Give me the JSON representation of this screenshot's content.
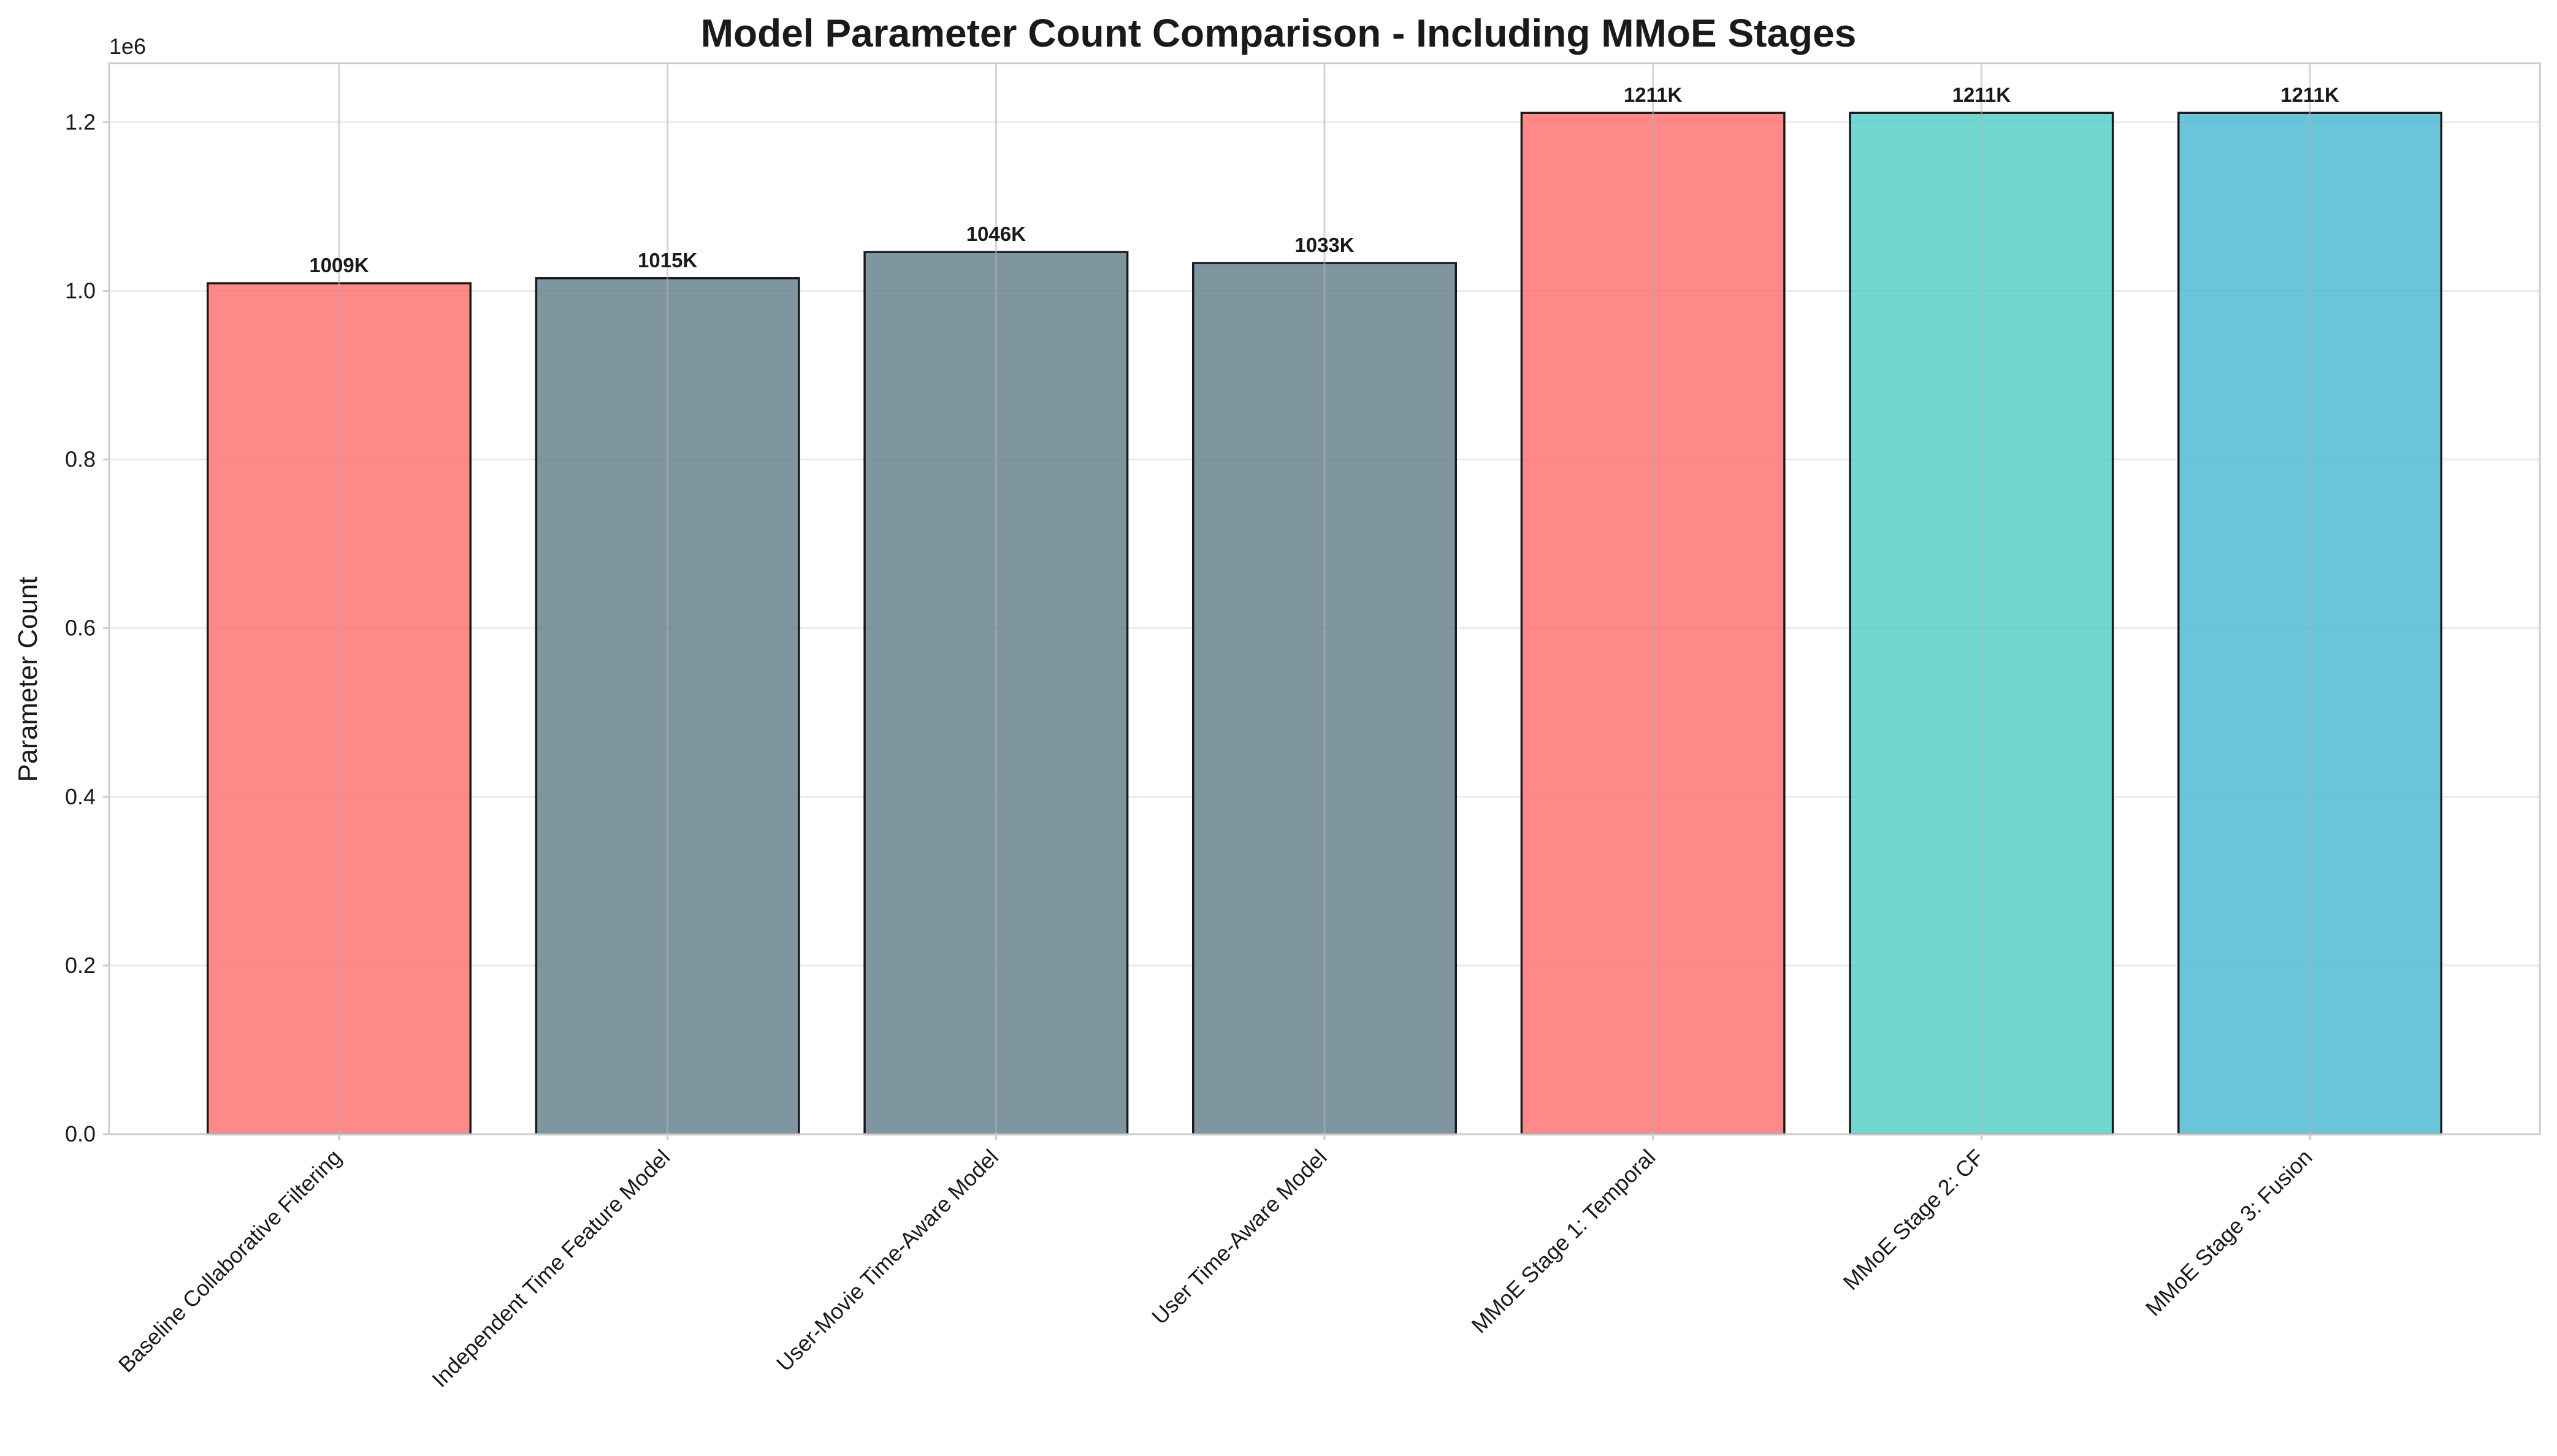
{
  "chart_data": {
    "type": "bar",
    "title": "Model Parameter Count Comparison - Including MMoE Stages",
    "xlabel": "",
    "ylabel": "Parameter Count",
    "y_offset_label": "1e6",
    "ylim": [
      0,
      1.27
    ],
    "y_ticks": [
      0.0,
      0.2,
      0.4,
      0.6,
      0.8,
      1.0,
      1.2
    ],
    "y_tick_labels": [
      "0.0",
      "0.2",
      "0.4",
      "0.6",
      "0.8",
      "1.0",
      "1.2"
    ],
    "grid": true,
    "categories": [
      "Baseline Collaborative Filtering",
      "Independent Time Feature Model",
      "User-Movie Time-Aware Model",
      "User Time-Aware Model",
      "MMoE Stage 1: Temporal",
      "MMoE Stage 2: CF",
      "MMoE Stage 3: Fusion"
    ],
    "values": [
      1.009,
      1.015,
      1.046,
      1.033,
      1.211,
      1.211,
      1.211
    ],
    "data_labels": [
      "1009K",
      "1015K",
      "1046K",
      "1033K",
      "1211K",
      "1211K",
      "1211K"
    ],
    "colors": [
      "#ff6b6b",
      "#5f7a87",
      "#5f7a87",
      "#5f7a87",
      "#ff6b6b",
      "#4ecdc4",
      "#45b7d1"
    ]
  }
}
